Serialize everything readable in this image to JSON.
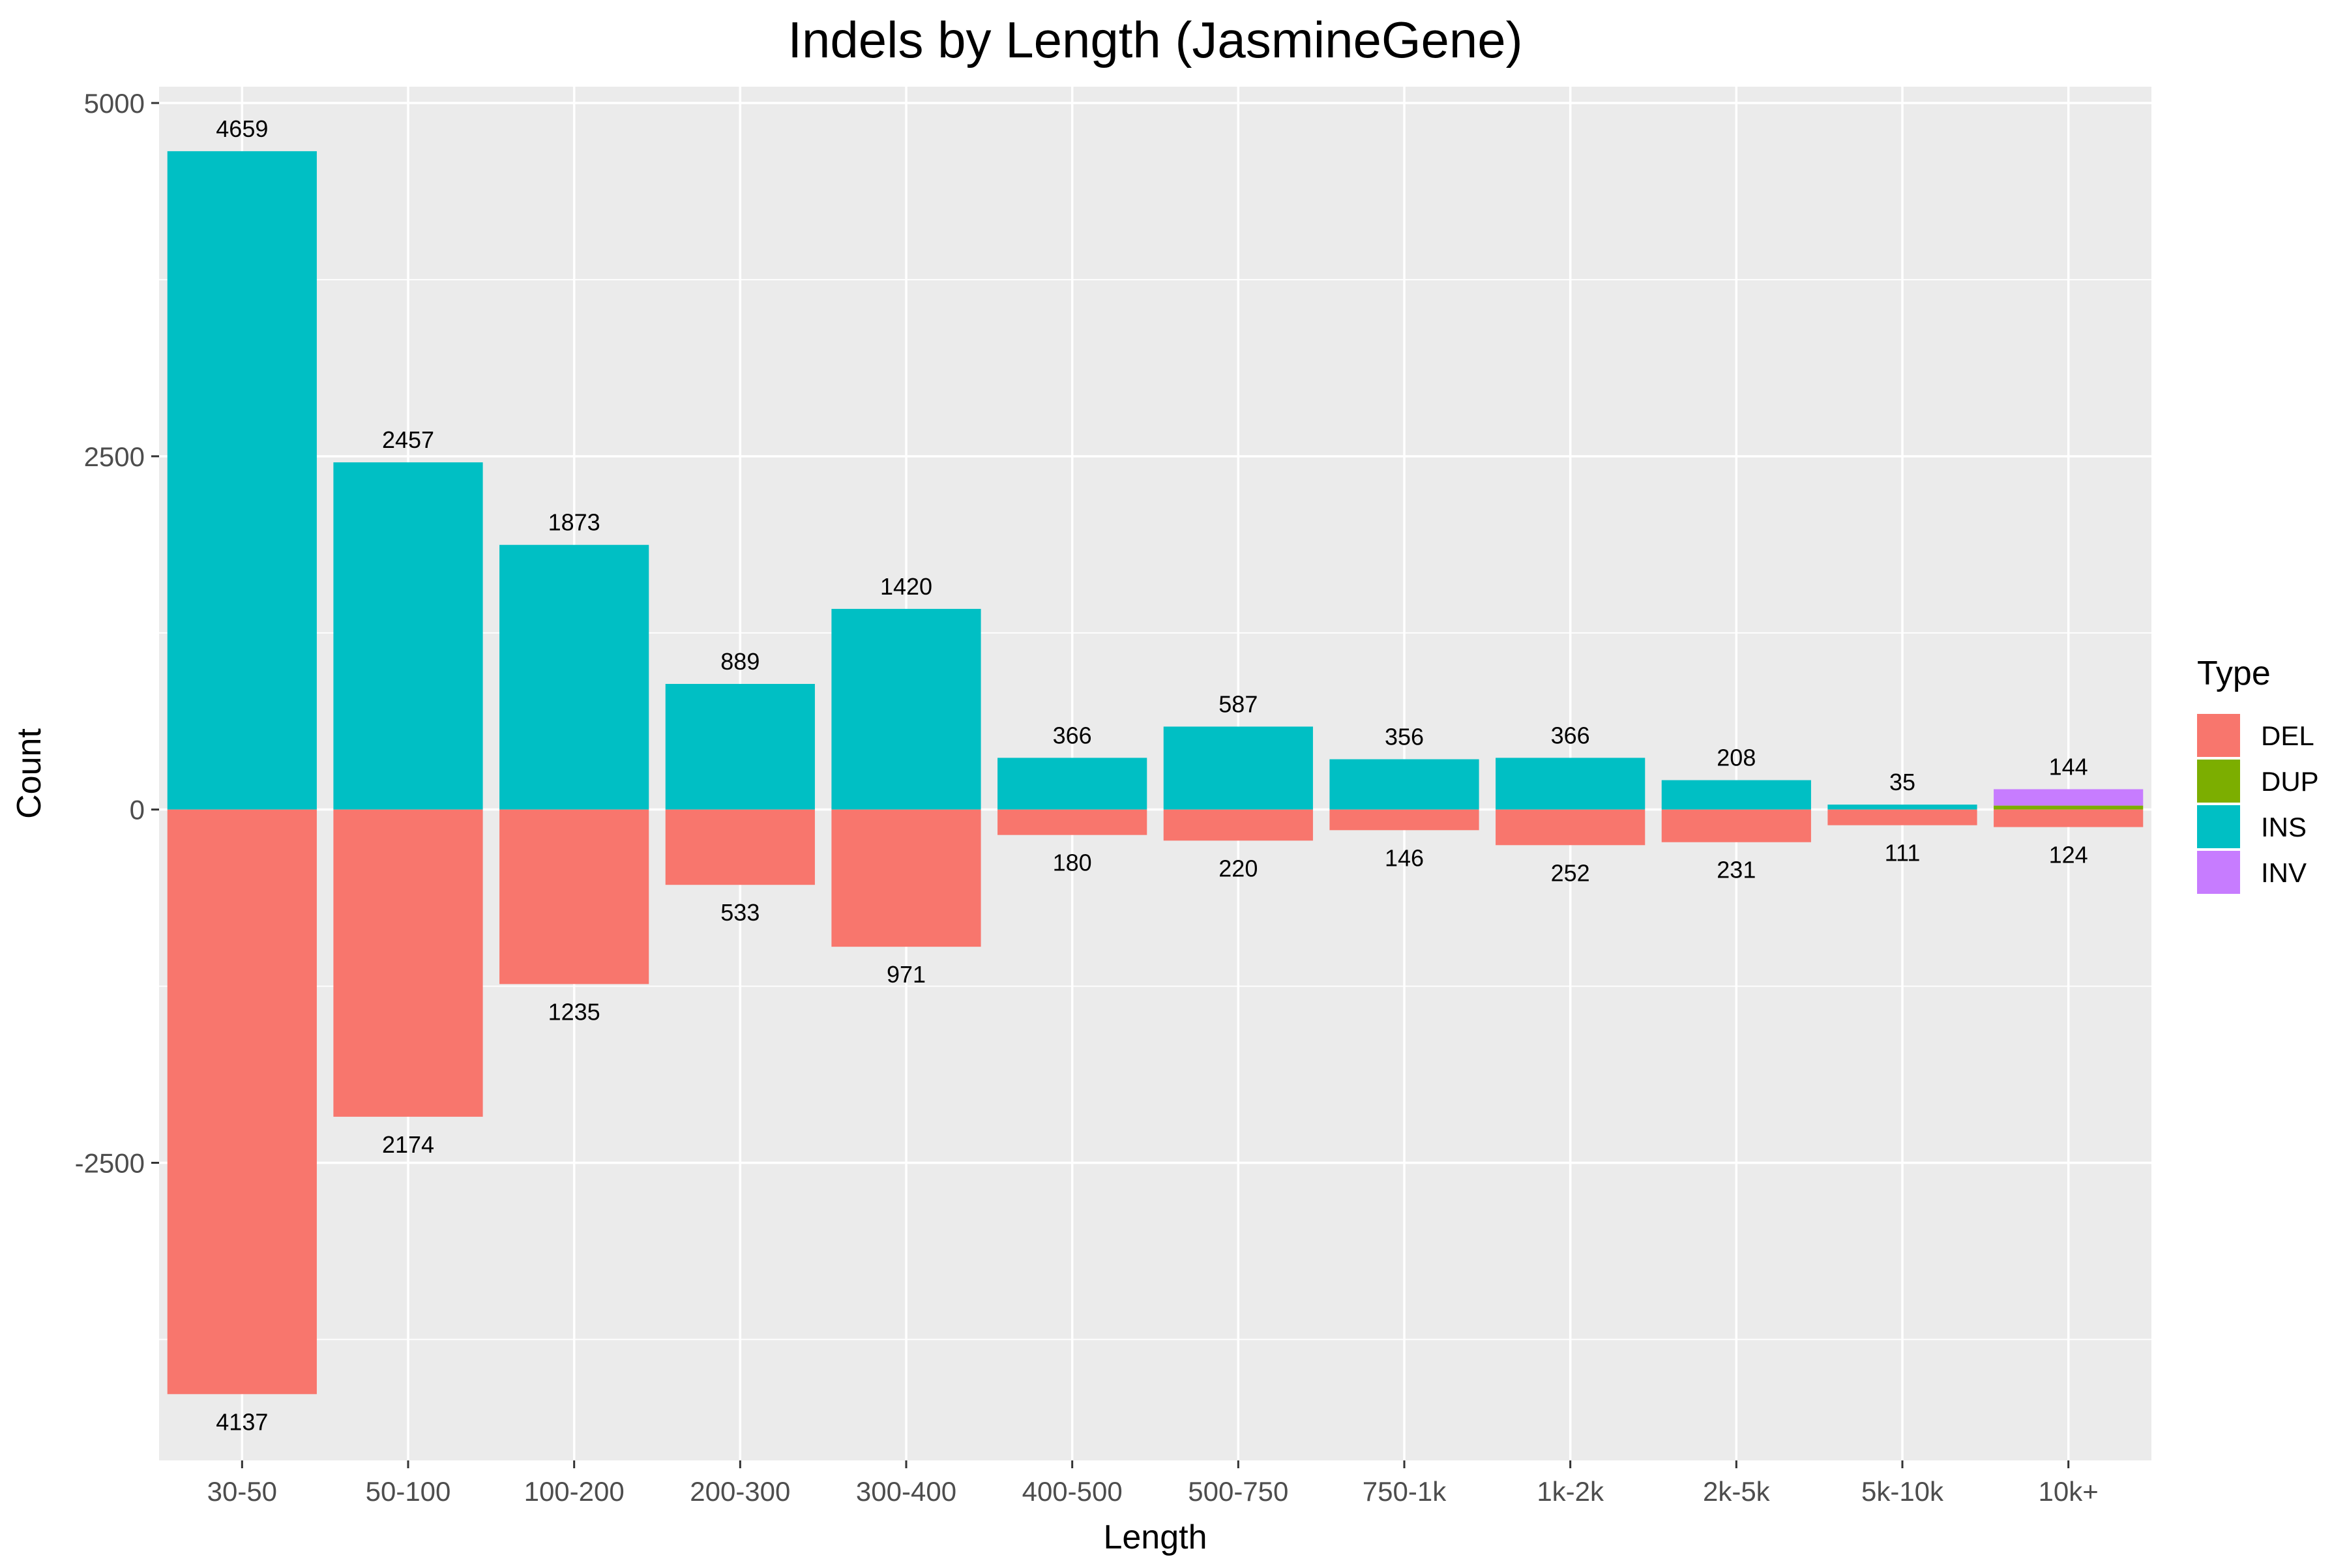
{
  "chart_data": {
    "type": "bar",
    "title": "Indels by Length (JasmineGene)",
    "xlabel": "Length",
    "ylabel": "Count",
    "categories": [
      "30-50",
      "50-100",
      "100-200",
      "200-300",
      "300-400",
      "400-500",
      "500-750",
      "750-1k",
      "1k-2k",
      "2k-5k",
      "5k-10k",
      "10k+"
    ],
    "ylim": [
      -4537,
      5000
    ],
    "yticks": [
      5000,
      2500,
      0,
      -2500
    ],
    "ytick_labels": [
      "5000",
      "2500",
      "0",
      "-2500"
    ],
    "grid": true,
    "stacked": true,
    "legend": {
      "title": "Type",
      "position": "right",
      "entries": [
        {
          "name": "DEL",
          "color": "#F8766D"
        },
        {
          "name": "DUP",
          "color": "#7CAE00"
        },
        {
          "name": "INS",
          "color": "#00BFC4"
        },
        {
          "name": "INV",
          "color": "#C77CFF"
        }
      ]
    },
    "series": [
      {
        "name": "INS",
        "color": "#00BFC4",
        "values": [
          4659,
          2457,
          1873,
          889,
          1420,
          366,
          587,
          356,
          366,
          208,
          35,
          0
        ]
      },
      {
        "name": "DUP",
        "color": "#7CAE00",
        "values": [
          0,
          0,
          0,
          0,
          0,
          0,
          0,
          0,
          0,
          0,
          0,
          28
        ]
      },
      {
        "name": "INV",
        "color": "#C77CFF",
        "values": [
          0,
          0,
          0,
          0,
          0,
          0,
          0,
          0,
          0,
          0,
          0,
          116
        ]
      },
      {
        "name": "DEL",
        "color": "#F8766D",
        "values": [
          -4137,
          -2174,
          -1235,
          -533,
          -971,
          -180,
          -220,
          -146,
          -252,
          -231,
          -111,
          -124
        ]
      }
    ],
    "top_labels": [
      "4659",
      "2457",
      "1873",
      "889",
      "1420",
      "366",
      "587",
      "356",
      "366",
      "208",
      "35",
      "144"
    ],
    "bottom_labels": [
      "4137",
      "2174",
      "1235",
      "533",
      "971",
      "180",
      "220",
      "146",
      "252",
      "231",
      "111",
      "124"
    ]
  }
}
